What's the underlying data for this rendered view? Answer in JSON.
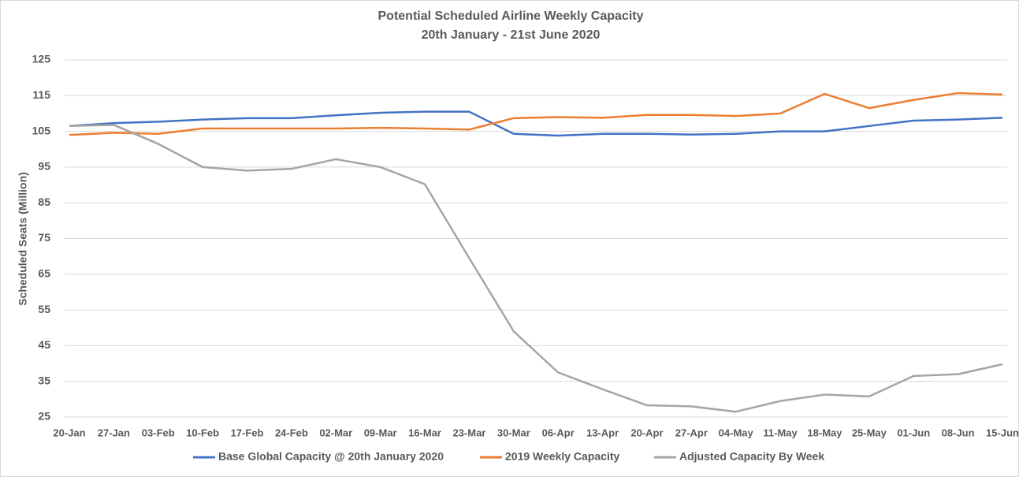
{
  "chart_data": {
    "type": "line",
    "title": "Potential Scheduled Airline Weekly Capacity",
    "subtitle": "20th January - 21st June 2020",
    "y_label": "Scheduled Seats (Million)",
    "categories": [
      "20-Jan",
      "27-Jan",
      "03-Feb",
      "10-Feb",
      "17-Feb",
      "24-Feb",
      "02-Mar",
      "09-Mar",
      "16-Mar",
      "23-Mar",
      "30-Mar",
      "06-Apr",
      "13-Apr",
      "20-Apr",
      "27-Apr",
      "04-May",
      "11-May",
      "18-May",
      "25-May",
      "01-Jun",
      "08-Jun",
      "15-Jun"
    ],
    "series": [
      {
        "name": "Base Global Capacity @ 20th January 2020",
        "color": "#4472c4",
        "values": [
          106.5,
          107.3,
          107.7,
          108.3,
          108.7,
          108.7,
          109.5,
          110.2,
          110.5,
          110.5,
          104.3,
          103.8,
          104.3,
          104.3,
          104.1,
          104.3,
          105,
          105,
          106.5,
          108,
          108.3,
          108.8
        ]
      },
      {
        "name": "2019 Weekly Capacity",
        "color": "#ed7d31",
        "values": [
          104,
          104.6,
          104.3,
          105.8,
          105.8,
          105.8,
          105.8,
          106,
          105.8,
          105.5,
          108.7,
          109,
          108.8,
          109.6,
          109.6,
          109.3,
          110,
          115.5,
          111.5,
          113.8,
          115.7,
          115.3
        ]
      },
      {
        "name": "Adjusted Capacity By Week",
        "color": "#a5a5a5",
        "values": [
          106.5,
          106.8,
          101.5,
          95,
          94,
          94.5,
          97.2,
          95,
          90.2,
          69.5,
          49,
          37.5,
          32.8,
          28.3,
          28,
          26.5,
          29.5,
          31.3,
          30.8,
          36.5,
          37,
          39.8
        ]
      }
    ],
    "ylim": [
      25,
      125
    ],
    "yticks": [
      25,
      35,
      45,
      55,
      65,
      75,
      85,
      95,
      105,
      115,
      125
    ],
    "grid": true,
    "legend": "bottom"
  }
}
